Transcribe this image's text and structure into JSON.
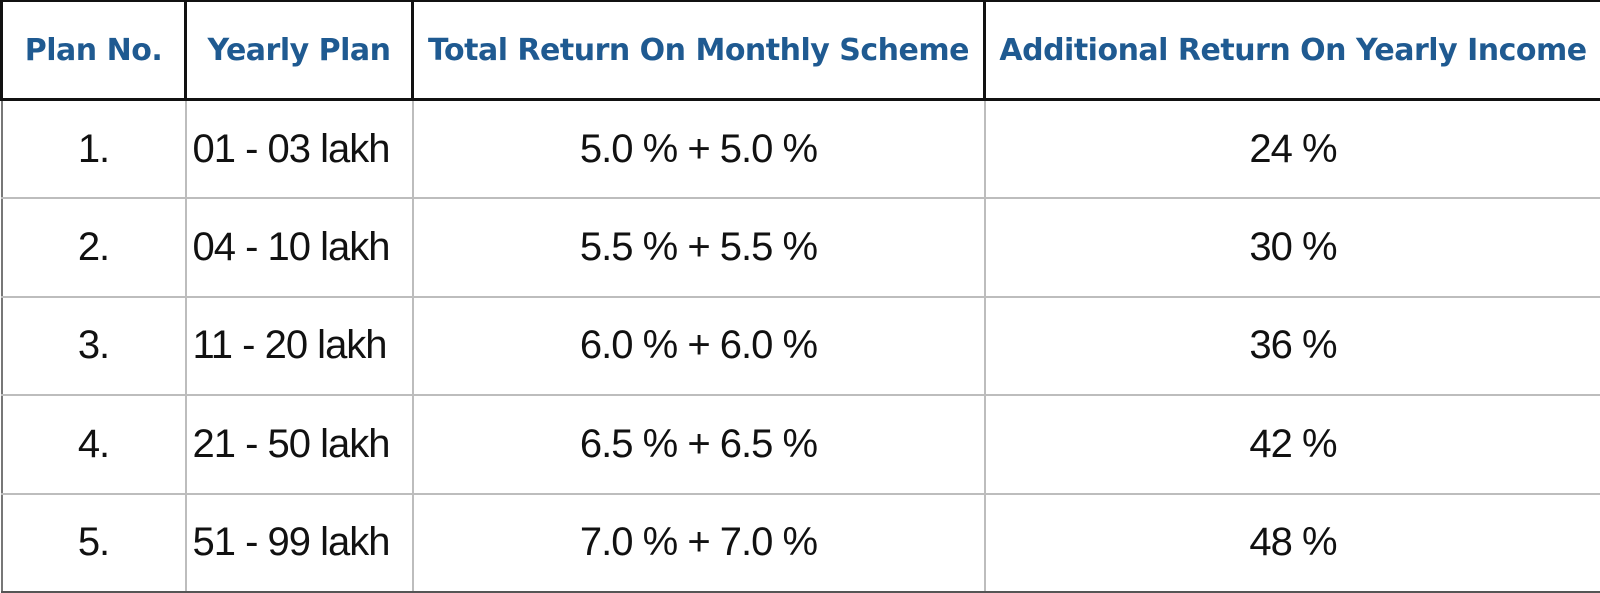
{
  "table": {
    "columns": [
      "Plan No.",
      "Yearly Plan",
      "Total Return On Monthly Scheme",
      "Additional Return On Yearly Income"
    ],
    "rows": [
      [
        "1.",
        "01 - 03 lakh",
        "5.0 % + 5.0 %",
        "24 %"
      ],
      [
        "2.",
        "04 - 10 lakh",
        "5.5 % + 5.5 %",
        "30 %"
      ],
      [
        "3.",
        "11 - 20 lakh",
        "6.0 % + 6.0 %",
        "36 %"
      ],
      [
        "4.",
        "21 - 50 lakh",
        "6.5 % + 6.5 %",
        "42 %"
      ],
      [
        "5.",
        "51 - 99 lakh",
        "7.0 % + 7.0 %",
        "48 %"
      ]
    ]
  }
}
